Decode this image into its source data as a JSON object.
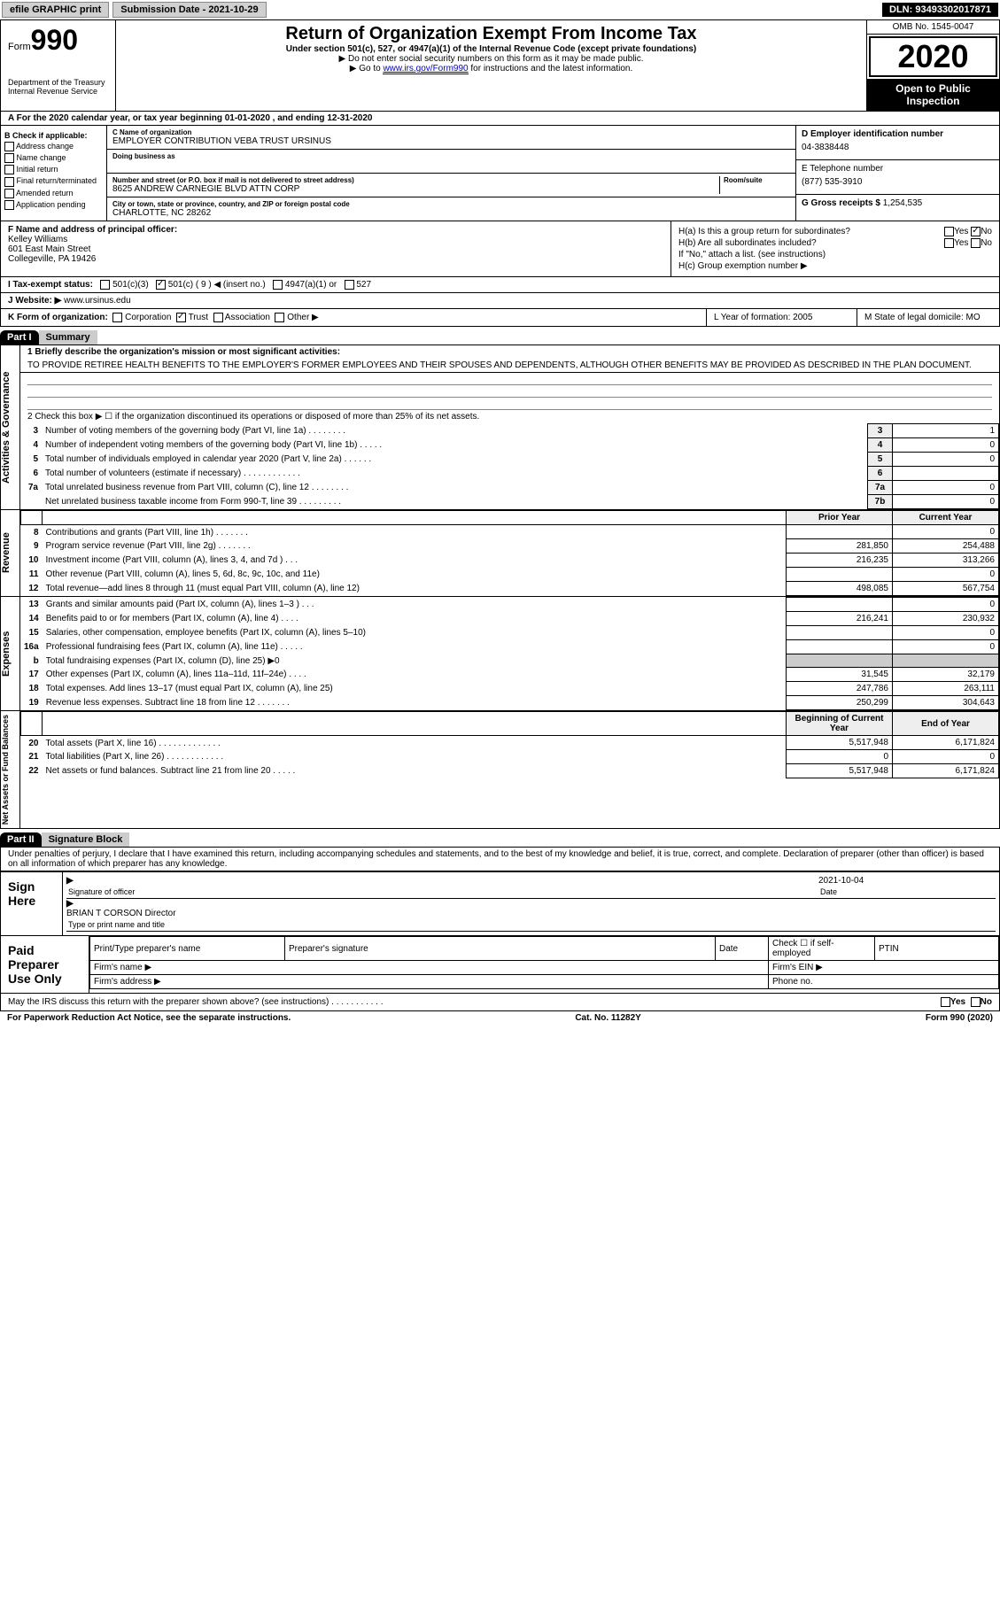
{
  "topbar": {
    "efile": "efile GRAPHIC print",
    "subdate_label": "Submission Date - 2021-10-29",
    "dln": "DLN: 93493302017871"
  },
  "header": {
    "form_label": "Form",
    "form_no": "990",
    "dept": "Department of the Treasury\nInternal Revenue Service",
    "title": "Return of Organization Exempt From Income Tax",
    "subtitle": "Under section 501(c), 527, or 4947(a)(1) of the Internal Revenue Code (except private foundations)",
    "note1": "▶ Do not enter social security numbers on this form as it may be made public.",
    "note2_pre": "▶ Go to ",
    "note2_link": "www.irs.gov/Form990",
    "note2_post": " for instructions and the latest information.",
    "omb": "OMB No. 1545-0047",
    "year": "2020",
    "open": "Open to Public Inspection"
  },
  "row_a": "A For the 2020 calendar year, or tax year beginning 01-01-2020   , and ending 12-31-2020",
  "col_b": {
    "title": "B Check if applicable:",
    "items": [
      "Address change",
      "Name change",
      "Initial return",
      "Final return/terminated",
      "Amended return",
      "Application pending"
    ]
  },
  "c": {
    "name_label": "C Name of organization",
    "name": "EMPLOYER CONTRIBUTION VEBA TRUST URSINUS",
    "dba_label": "Doing business as",
    "addr_label": "Number and street (or P.O. box if mail is not delivered to street address)",
    "room_label": "Room/suite",
    "addr": "8625 ANDREW CARNEGIE BLVD ATTN CORP",
    "city_label": "City or town, state or province, country, and ZIP or foreign postal code",
    "city": "CHARLOTTE, NC  28262"
  },
  "right": {
    "d_label": "D Employer identification number",
    "d_val": "04-3838448",
    "e_label": "E Telephone number",
    "e_val": "(877) 535-3910",
    "g_label": "G Gross receipts $",
    "g_val": "1,254,535"
  },
  "f": {
    "label": "F  Name and address of principal officer:",
    "name": "Kelley Williams",
    "addr1": "601 East Main Street",
    "addr2": "Collegeville, PA  19426"
  },
  "h": {
    "a_label": "H(a)  Is this a group return for subordinates?",
    "yes": "Yes",
    "no": "No",
    "b_label": "H(b)  Are all subordinates included?",
    "b_note": "If \"No,\" attach a list. (see instructions)",
    "c_label": "H(c)  Group exemption number ▶"
  },
  "i": {
    "label": "I    Tax-exempt status:",
    "opts": [
      "501(c)(3)",
      "501(c) ( 9 ) ◀ (insert no.)",
      "4947(a)(1) or",
      "527"
    ]
  },
  "j": {
    "label": "J   Website: ▶",
    "val": "  www.ursinus.edu"
  },
  "k": {
    "label": "K Form of organization:",
    "opts": [
      "Corporation",
      "Trust",
      "Association",
      "Other ▶"
    ],
    "l": "L Year of formation: 2005",
    "m": "M State of legal domicile: MO"
  },
  "part1": {
    "hdr": "Part I",
    "title": "Summary"
  },
  "summary": {
    "sec1_label": "Activities & Governance",
    "line1_label": "1  Briefly describe the organization's mission or most significant activities:",
    "line1_val": "TO PROVIDE RETIREE HEALTH BENEFITS TO THE EMPLOYER'S FORMER EMPLOYEES AND THEIR SPOUSES AND DEPENDENTS, ALTHOUGH OTHER BENEFITS MAY BE PROVIDED AS DESCRIBED IN THE PLAN DOCUMENT.",
    "line2": "2   Check this box ▶ ☐  if the organization discontinued its operations or disposed of more than 25% of its net assets.",
    "lines_gov": [
      {
        "n": "3",
        "d": "Number of voting members of the governing body (Part VI, line 1a)   .    .    .    .    .    .    .    .",
        "box": "3",
        "v": "1"
      },
      {
        "n": "4",
        "d": "Number of independent voting members of the governing body (Part VI, line 1b)   .    .    .    .    .",
        "box": "4",
        "v": "0"
      },
      {
        "n": "5",
        "d": "Total number of individuals employed in calendar year 2020 (Part V, line 2a)   .    .    .    .    .    .",
        "box": "5",
        "v": "0"
      },
      {
        "n": "6",
        "d": "Total number of volunteers (estimate if necessary)   .    .    .    .    .    .    .    .    .    .    .    .",
        "box": "6",
        "v": ""
      },
      {
        "n": "7a",
        "d": "Total unrelated business revenue from Part VIII, column (C), line 12   .    .    .    .    .    .    .    .",
        "box": "7a",
        "v": "0"
      },
      {
        "n": "",
        "d": "Net unrelated business taxable income from Form 990-T, line 39   .    .    .    .    .    .    .    .    .",
        "box": "7b",
        "v": "0"
      }
    ],
    "col_prior": "Prior Year",
    "col_curr": "Current Year",
    "sec_rev": "Revenue",
    "lines_rev": [
      {
        "n": "8",
        "d": "Contributions and grants (Part VIII, line 1h)   .    .    .    .    .    .    .",
        "p": "",
        "c": "0"
      },
      {
        "n": "9",
        "d": "Program service revenue (Part VIII, line 2g)   .    .    .    .    .    .    .",
        "p": "281,850",
        "c": "254,488"
      },
      {
        "n": "10",
        "d": "Investment income (Part VIII, column (A), lines 3, 4, and 7d )   .    .    .",
        "p": "216,235",
        "c": "313,266"
      },
      {
        "n": "11",
        "d": "Other revenue (Part VIII, column (A), lines 5, 6d, 8c, 9c, 10c, and 11e)",
        "p": "",
        "c": "0"
      },
      {
        "n": "12",
        "d": "Total revenue—add lines 8 through 11 (must equal Part VIII, column (A), line 12)",
        "p": "498,085",
        "c": "567,754"
      }
    ],
    "sec_exp": "Expenses",
    "lines_exp": [
      {
        "n": "13",
        "d": "Grants and similar amounts paid (Part IX, column (A), lines 1–3 )   .    .    .",
        "p": "",
        "c": "0"
      },
      {
        "n": "14",
        "d": "Benefits paid to or for members (Part IX, column (A), line 4)   .    .    .    .",
        "p": "216,241",
        "c": "230,932"
      },
      {
        "n": "15",
        "d": "Salaries, other compensation, employee benefits (Part IX, column (A), lines 5–10)",
        "p": "",
        "c": "0"
      },
      {
        "n": "16a",
        "d": "Professional fundraising fees (Part IX, column (A), line 11e)   .    .    .    .    .",
        "p": "",
        "c": "0"
      },
      {
        "n": "b",
        "d": "Total fundraising expenses (Part IX, column (D), line 25) ▶0",
        "p": "shaded",
        "c": "shaded"
      },
      {
        "n": "17",
        "d": "Other expenses (Part IX, column (A), lines 11a–11d, 11f–24e)   .    .    .    .",
        "p": "31,545",
        "c": "32,179"
      },
      {
        "n": "18",
        "d": "Total expenses. Add lines 13–17 (must equal Part IX, column (A), line 25)",
        "p": "247,786",
        "c": "263,111"
      },
      {
        "n": "19",
        "d": "Revenue less expenses. Subtract line 18 from line 12   .    .    .    .    .    .    .",
        "p": "250,299",
        "c": "304,643"
      }
    ],
    "col_beg": "Beginning of Current Year",
    "col_end": "End of Year",
    "sec_net": "Net Assets or Fund Balances",
    "lines_net": [
      {
        "n": "20",
        "d": "Total assets (Part X, line 16)   .    .    .    .    .    .    .    .    .    .    .    .    .",
        "p": "5,517,948",
        "c": "6,171,824"
      },
      {
        "n": "21",
        "d": "Total liabilities (Part X, line 26)   .    .    .    .    .    .    .    .    .    .    .    .",
        "p": "0",
        "c": "0"
      },
      {
        "n": "22",
        "d": "Net assets or fund balances. Subtract line 21 from line 20   .    .    .    .    .",
        "p": "5,517,948",
        "c": "6,171,824"
      }
    ]
  },
  "part2": {
    "hdr": "Part II",
    "title": "Signature Block"
  },
  "sig_decl": "Under penalties of perjury, I declare that I have examined this return, including accompanying schedules and statements, and to the best of my knowledge and belief, it is true, correct, and complete. Declaration of preparer (other than officer) is based on all information of which preparer has any knowledge.",
  "sign": {
    "here": "Sign Here",
    "sig_officer": "Signature of officer",
    "date": "Date",
    "date_val": "2021-10-04",
    "name": "BRIAN T CORSON  Director",
    "type_name": "Type or print name and title"
  },
  "paid": {
    "label": "Paid Preparer Use Only",
    "print": "Print/Type preparer's name",
    "prepsig": "Preparer's signature",
    "datecol": "Date",
    "check": "Check ☐ if self-employed",
    "ptin": "PTIN",
    "firm": "Firm's name  ▶",
    "ein": "Firm's EIN ▶",
    "addr": "Firm's address ▶",
    "phone": "Phone no."
  },
  "may": "May the IRS discuss this return with the preparer shown above? (see instructions)   .    .    .    .    .    .    .    .    .    .    .",
  "footer": {
    "left": "For Paperwork Reduction Act Notice, see the separate instructions.",
    "mid": "Cat. No. 11282Y",
    "right": "Form 990 (2020)"
  }
}
